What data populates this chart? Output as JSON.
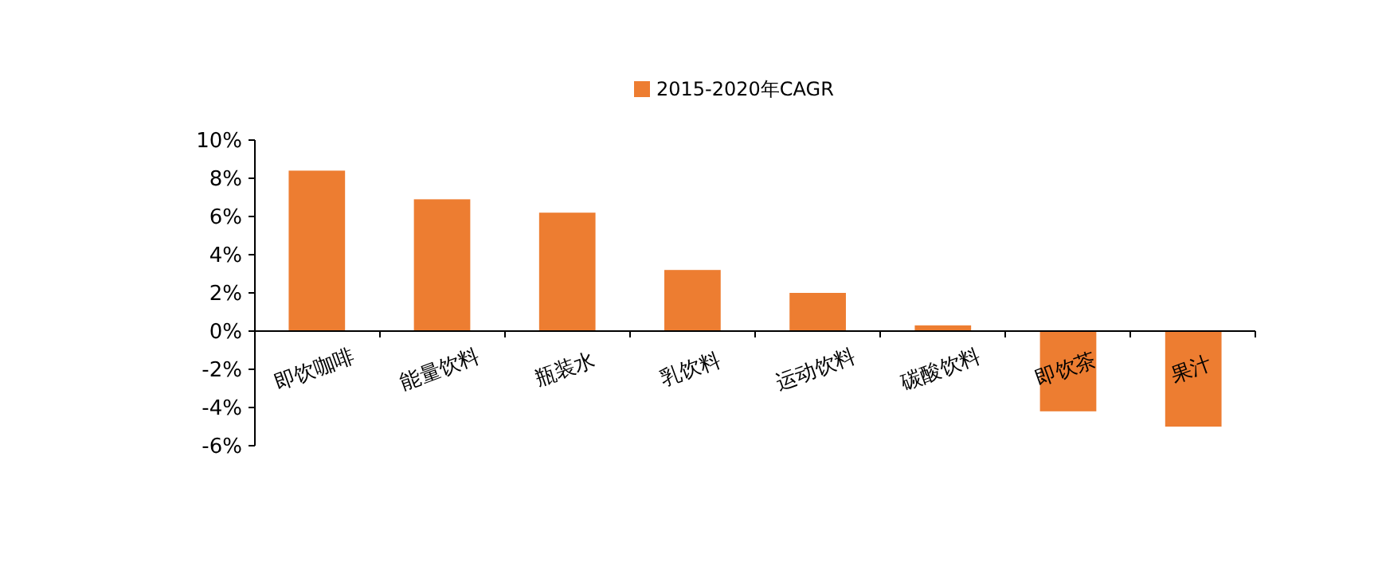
{
  "chart_data": {
    "type": "bar",
    "categories": [
      "即饮咖啡",
      "能量饮料",
      "瓶装水",
      "乳饮料",
      "运动饮料",
      "碳酸饮料",
      "即饮茶",
      "果汁"
    ],
    "series": [
      {
        "name": "2015-2020年CAGR",
        "color": "#ed7d31",
        "values": [
          8.4,
          6.9,
          6.2,
          3.2,
          2.0,
          0.3,
          -4.2,
          -5.0
        ]
      }
    ],
    "ylim": [
      -6,
      10
    ],
    "yticks": [
      {
        "value": -6,
        "label": "-6%"
      },
      {
        "value": -4,
        "label": "-4%"
      },
      {
        "value": -2,
        "label": "-2%"
      },
      {
        "value": 0,
        "label": "0%"
      },
      {
        "value": 2,
        "label": "2%"
      },
      {
        "value": 4,
        "label": "4%"
      },
      {
        "value": 6,
        "label": "6%"
      },
      {
        "value": 8,
        "label": "8%"
      },
      {
        "value": 10,
        "label": "10%"
      }
    ],
    "legend": "top",
    "grid": false
  }
}
